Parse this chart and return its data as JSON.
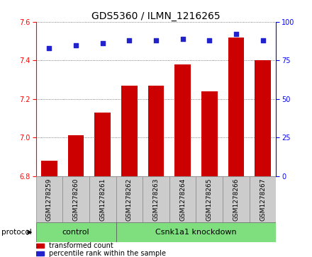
{
  "title": "GDS5360 / ILMN_1216265",
  "samples": [
    "GSM1278259",
    "GSM1278260",
    "GSM1278261",
    "GSM1278262",
    "GSM1278263",
    "GSM1278264",
    "GSM1278265",
    "GSM1278266",
    "GSM1278267"
  ],
  "transformed_counts": [
    6.88,
    7.01,
    7.13,
    7.27,
    7.27,
    7.38,
    7.24,
    7.52,
    7.4
  ],
  "percentile_ranks": [
    83,
    85,
    86,
    88,
    88,
    89,
    88,
    92,
    88
  ],
  "ylim": [
    6.8,
    7.6
  ],
  "yticks_left": [
    6.8,
    7.0,
    7.2,
    7.4,
    7.6
  ],
  "yticks_right": [
    0,
    25,
    50,
    75,
    100
  ],
  "bar_color": "#cc0000",
  "dot_color": "#2222cc",
  "group1_label": "control",
  "group1_indices": [
    0,
    1,
    2
  ],
  "group2_label": "Csnk1a1 knockdown",
  "group2_indices": [
    3,
    4,
    5,
    6,
    7,
    8
  ],
  "group_color": "#7fdf7f",
  "sample_box_color": "#cccccc",
  "protocol_label": "protocol",
  "legend_bar_label": "transformed count",
  "legend_dot_label": "percentile rank within the sample",
  "title_fontsize": 10,
  "tick_fontsize": 7,
  "label_fontsize": 6.5,
  "group_fontsize": 8,
  "legend_fontsize": 7,
  "bar_width": 0.6
}
